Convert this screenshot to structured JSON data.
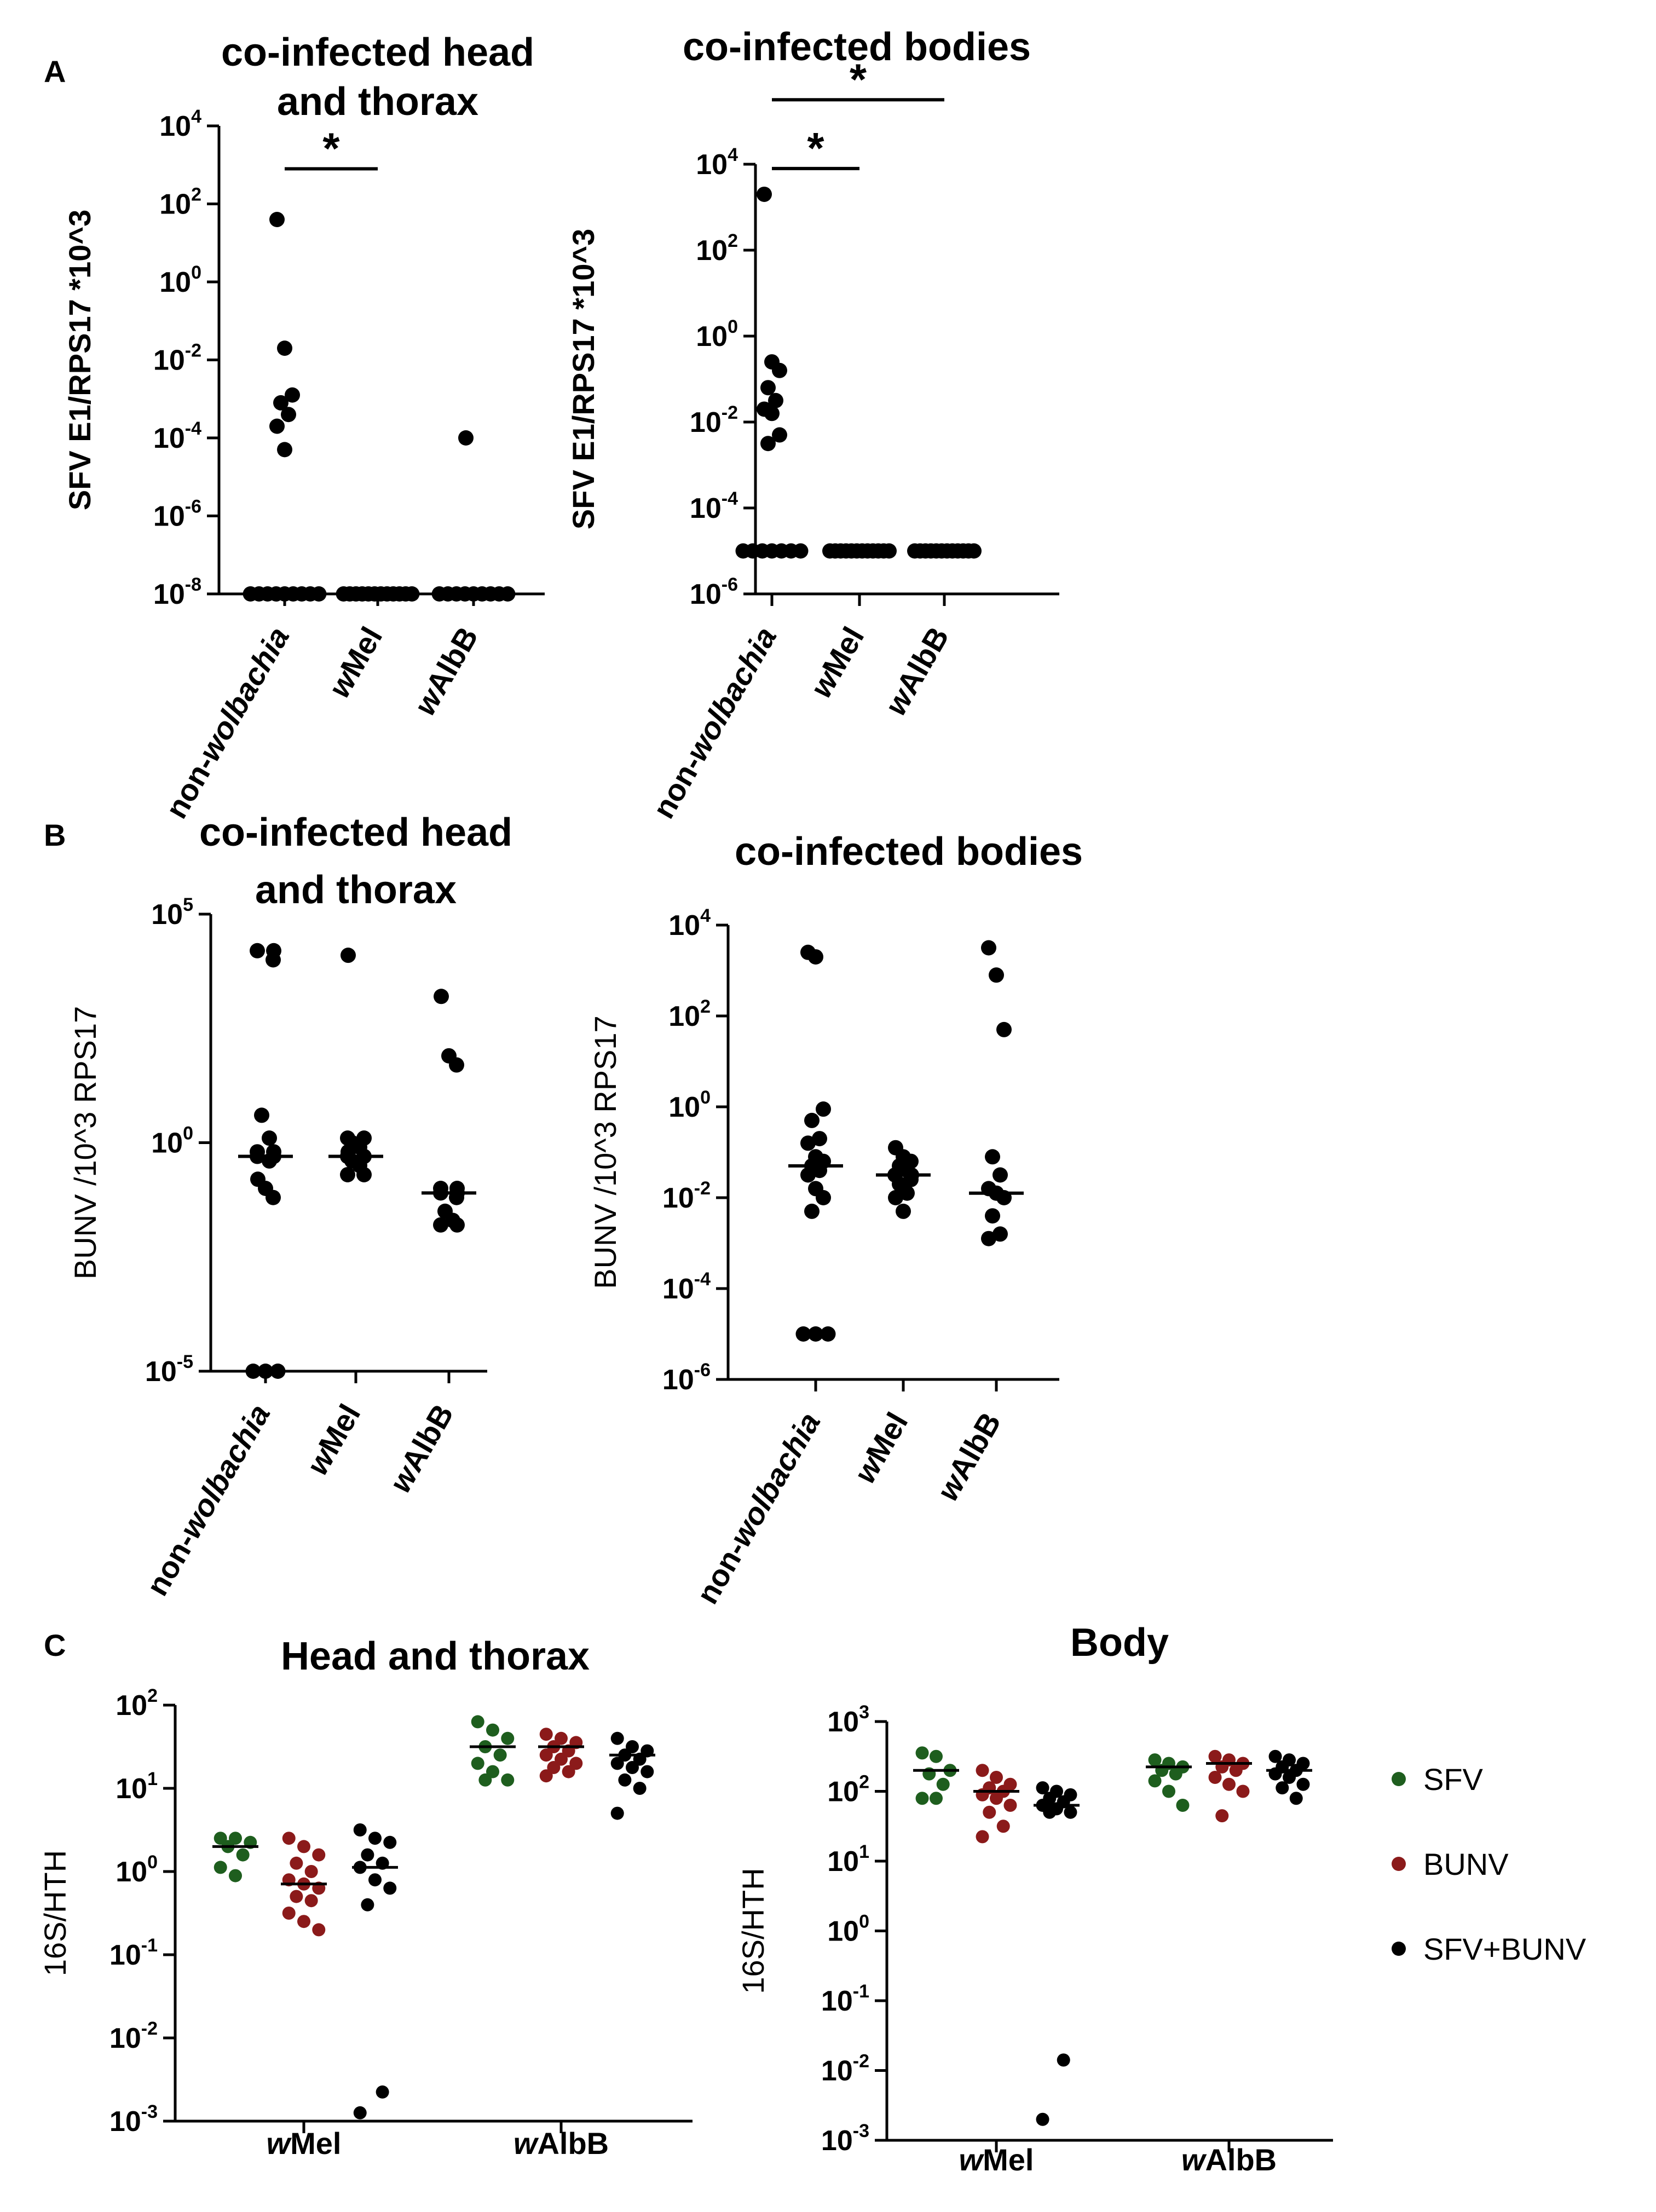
{
  "figure": {
    "panels": [
      {
        "letter": "A"
      },
      {
        "letter": "B"
      },
      {
        "letter": "C"
      }
    ]
  },
  "legend": {
    "items": [
      {
        "label": "SFV",
        "color": "#1e5e1e"
      },
      {
        "label": "BUNV",
        "color": "#8b1a1a"
      },
      {
        "label": "SFV+BUNV",
        "color": "#000000"
      }
    ]
  },
  "chart_data": [
    {
      "id": "A1",
      "panel": "A",
      "type": "scatter",
      "title_lines": [
        "co-infected head",
        "and thorax"
      ],
      "ylabel": "SFV E1/RPS17 *10^3",
      "ylabel_bold": true,
      "yscale": "log",
      "yticks": [
        {
          "base": "10",
          "exp": "4"
        },
        {
          "base": "10",
          "exp": "2"
        },
        {
          "base": "10",
          "exp": "0"
        },
        {
          "base": "10",
          "exp": "-2"
        },
        {
          "base": "10",
          "exp": "-4"
        },
        {
          "base": "10",
          "exp": "-6"
        },
        {
          "base": "10",
          "exp": "-8"
        }
      ],
      "ylim_log10": [
        -8,
        4
      ],
      "categories": [
        {
          "pre": "non-",
          "it": "wolbachia",
          "post": ""
        },
        {
          "pre": "",
          "it": "w",
          "post": "Mel"
        },
        {
          "pre": "",
          "it": "w",
          "post": "AlbB"
        }
      ],
      "series": [
        {
          "name": "non-wolbachia",
          "color": "#000000",
          "median_log10": -8,
          "values_log10": [
            1.6,
            -1.7,
            -2.9,
            -3.1,
            -3.4,
            -3.7,
            -4.3,
            -8,
            -8,
            -8,
            -8,
            -8,
            -8,
            -8,
            -8,
            -8
          ]
        },
        {
          "name": "wMel",
          "color": "#000000",
          "median_log10": -8,
          "values_log10": [
            -8,
            -8,
            -8,
            -8,
            -8,
            -8,
            -8,
            -8,
            -8,
            -8,
            -8,
            -8
          ]
        },
        {
          "name": "wAlbB",
          "color": "#000000",
          "median_log10": -8,
          "values_log10": [
            -4,
            -8,
            -8,
            -8,
            -8,
            -8,
            -8,
            -8,
            -8,
            -8
          ]
        }
      ],
      "significance": [
        {
          "from": 0,
          "to": 1,
          "label": "*",
          "y_log10": 2.9
        }
      ]
    },
    {
      "id": "A2",
      "panel": "A",
      "type": "scatter",
      "title_lines": [
        "co-infected bodies"
      ],
      "ylabel": "SFV E1/RPS17 *10^3",
      "ylabel_bold": true,
      "yscale": "log",
      "yticks": [
        {
          "base": "10",
          "exp": "4"
        },
        {
          "base": "10",
          "exp": "2"
        },
        {
          "base": "10",
          "exp": "0"
        },
        {
          "base": "10",
          "exp": "-2"
        },
        {
          "base": "10",
          "exp": "-4"
        },
        {
          "base": "10",
          "exp": "-6"
        }
      ],
      "ylim_log10": [
        -6,
        4
      ],
      "categories": [
        {
          "pre": "non-",
          "it": "wolbachia",
          "post": ""
        },
        {
          "pre": "",
          "it": "w",
          "post": "Mel"
        },
        {
          "pre": "",
          "it": "w",
          "post": "AlbB"
        }
      ],
      "series": [
        {
          "name": "non-wolbachia",
          "color": "#000000",
          "median_log10": -5,
          "values_log10": [
            3.3,
            -0.6,
            -0.8,
            -1.2,
            -1.5,
            -1.7,
            -1.8,
            -2.3,
            -2.5,
            -5,
            -5,
            -5,
            -5,
            -5,
            -5,
            -5
          ]
        },
        {
          "name": "wMel",
          "color": "#000000",
          "median_log10": -5,
          "values_log10": [
            -5,
            -5,
            -5,
            -5,
            -5,
            -5,
            -5,
            -5,
            -5,
            -5,
            -5,
            -5
          ]
        },
        {
          "name": "wAlbB",
          "color": "#000000",
          "median_log10": -5,
          "values_log10": [
            -5,
            -5,
            -5,
            -5,
            -5,
            -5,
            -5,
            -5,
            -5,
            -5,
            -5,
            -5
          ]
        }
      ],
      "significance": [
        {
          "from": 0,
          "to": 1,
          "label": "*",
          "y_log10": 3.9
        },
        {
          "from": 0,
          "to": 2,
          "label": "*",
          "y_log10": 5.5
        }
      ]
    },
    {
      "id": "B1",
      "panel": "B",
      "type": "scatter",
      "title_lines": [
        "co-infected head",
        "and thorax"
      ],
      "ylabel": "BUNV /10^3 RPS17",
      "ylabel_bold": false,
      "yscale": "log",
      "yticks": [
        {
          "base": "10",
          "exp": "5"
        },
        {
          "base": "10",
          "exp": "0"
        },
        {
          "base": "10",
          "exp": "-5"
        }
      ],
      "ylim_log10": [
        -5,
        5
      ],
      "categories": [
        {
          "pre": "non-",
          "it": "wolbachia",
          "post": ""
        },
        {
          "pre": "",
          "it": "w",
          "post": "Mel"
        },
        {
          "pre": "",
          "it": "w",
          "post": "AlbB"
        }
      ],
      "series": [
        {
          "name": "non-wolbachia",
          "color": "#000000",
          "median_log10": -0.3,
          "values_log10": [
            4.2,
            4.2,
            4.0,
            0.6,
            0.1,
            -0.2,
            -0.2,
            -0.3,
            -0.3,
            -0.4,
            -0.8,
            -1.0,
            -1.2,
            -5,
            -5,
            -5
          ]
        },
        {
          "name": "wMel",
          "color": "#000000",
          "median_log10": -0.3,
          "values_log10": [
            4.1,
            0.1,
            0.1,
            0.0,
            -0.1,
            -0.2,
            -0.3,
            -0.3,
            -0.4,
            -0.5,
            -0.7,
            -0.7
          ]
        },
        {
          "name": "wAlbB",
          "color": "#000000",
          "median_log10": -1.1,
          "values_log10": [
            3.2,
            1.9,
            1.7,
            -1.0,
            -1.0,
            -1.1,
            -1.1,
            -1.2,
            -1.5,
            -1.7,
            -1.8,
            -1.8
          ]
        }
      ],
      "significance": []
    },
    {
      "id": "B2",
      "panel": "B",
      "type": "scatter",
      "title_lines": [
        "co-infected bodies"
      ],
      "ylabel": "BUNV /10^3 RPS17",
      "ylabel_bold": false,
      "yscale": "log",
      "yticks": [
        {
          "base": "10",
          "exp": "4"
        },
        {
          "base": "10",
          "exp": "2"
        },
        {
          "base": "10",
          "exp": "0"
        },
        {
          "base": "10",
          "exp": "-2"
        },
        {
          "base": "10",
          "exp": "-4"
        },
        {
          "base": "10",
          "exp": "-6"
        }
      ],
      "ylim_log10": [
        -6,
        4
      ],
      "categories": [
        {
          "pre": "non-",
          "it": "wolbachia",
          "post": ""
        },
        {
          "pre": "",
          "it": "w",
          "post": "Mel"
        },
        {
          "pre": "",
          "it": "w",
          "post": "AlbB"
        }
      ],
      "series": [
        {
          "name": "non-wolbachia",
          "color": "#000000",
          "median_log10": -1.3,
          "values_log10": [
            3.4,
            3.3,
            -0.05,
            -0.3,
            -0.7,
            -0.8,
            -1.1,
            -1.2,
            -1.3,
            -1.4,
            -1.5,
            -1.8,
            -2.0,
            -2.3,
            -5,
            -5,
            -5
          ]
        },
        {
          "name": "wMel",
          "color": "#000000",
          "median_log10": -1.5,
          "values_log10": [
            -0.9,
            -1.1,
            -1.2,
            -1.3,
            -1.4,
            -1.5,
            -1.5,
            -1.6,
            -1.7,
            -1.9,
            -2.0,
            -2.3
          ]
        },
        {
          "name": "wAlbB",
          "color": "#000000",
          "median_log10": -1.9,
          "values_log10": [
            3.5,
            2.9,
            1.7,
            -1.1,
            -1.5,
            -1.8,
            -1.9,
            -2.0,
            -2.4,
            -2.8,
            -2.9
          ]
        }
      ],
      "significance": []
    },
    {
      "id": "C1",
      "panel": "C",
      "type": "scatter",
      "title_lines": [
        "Head and thorax"
      ],
      "ylabel": "16S/HTH",
      "ylabel_bold": false,
      "yscale": "log",
      "yticks": [
        {
          "base": "10",
          "exp": "2"
        },
        {
          "base": "10",
          "exp": "1"
        },
        {
          "base": "10",
          "exp": "0"
        },
        {
          "base": "10",
          "exp": "-1"
        },
        {
          "base": "10",
          "exp": "-2"
        },
        {
          "base": "10",
          "exp": "-3"
        }
      ],
      "ylim_log10": [
        -3,
        2
      ],
      "categories": [
        {
          "pre": "",
          "it": "w",
          "post": "Mel"
        },
        {
          "pre": "",
          "it": "w",
          "post": "AlbB"
        }
      ],
      "series": [
        {
          "name": "SFV",
          "color": "#1e5e1e",
          "median_log10": [
            0.3,
            1.5
          ],
          "values_log10": [
            [
              0.4,
              0.4,
              0.35,
              0.3,
              0.2,
              0.05,
              -0.05
            ],
            [
              1.8,
              1.7,
              1.6,
              1.5,
              1.4,
              1.3,
              1.2,
              1.1,
              1.1
            ]
          ]
        },
        {
          "name": "BUNV",
          "color": "#8b1a1a",
          "median_log10": [
            -0.15,
            1.5
          ],
          "values_log10": [
            [
              0.4,
              0.3,
              0.2,
              0.1,
              0.0,
              -0.1,
              -0.15,
              -0.2,
              -0.3,
              -0.35,
              -0.5,
              -0.6,
              -0.7
            ],
            [
              1.65,
              1.6,
              1.55,
              1.5,
              1.45,
              1.4,
              1.35,
              1.3,
              1.25,
              1.2,
              1.15
            ]
          ]
        },
        {
          "name": "SFV+BUNV",
          "color": "#000000",
          "median_log10": [
            0.05,
            1.4
          ],
          "values_log10": [
            [
              0.5,
              0.4,
              0.35,
              0.2,
              0.1,
              0.05,
              -0.1,
              -0.2,
              -0.4,
              -2.65,
              -2.9
            ],
            [
              1.6,
              1.5,
              1.45,
              1.4,
              1.35,
              1.3,
              1.25,
              1.2,
              1.1,
              1.0,
              0.7
            ]
          ]
        }
      ]
    },
    {
      "id": "C2",
      "panel": "C",
      "type": "scatter",
      "title_lines": [
        "Body"
      ],
      "ylabel": "16S/HTH",
      "ylabel_bold": false,
      "yscale": "log",
      "yticks": [
        {
          "base": "10",
          "exp": "3"
        },
        {
          "base": "10",
          "exp": "2"
        },
        {
          "base": "10",
          "exp": "1"
        },
        {
          "base": "10",
          "exp": "0"
        },
        {
          "base": "10",
          "exp": "-1"
        },
        {
          "base": "10",
          "exp": "-2"
        },
        {
          "base": "10",
          "exp": "-3"
        }
      ],
      "ylim_log10": [
        -3,
        3
      ],
      "categories": [
        {
          "pre": "",
          "it": "w",
          "post": "Mel"
        },
        {
          "pre": "",
          "it": "w",
          "post": "AlbB"
        }
      ],
      "series": [
        {
          "name": "SFV",
          "color": "#1e5e1e",
          "median_log10": [
            2.3,
            2.35
          ],
          "values_log10": [
            [
              2.55,
              2.5,
              2.3,
              2.25,
              2.1,
              1.9,
              1.9
            ],
            [
              2.45,
              2.4,
              2.35,
              2.3,
              2.25,
              2.15,
              2.0,
              1.8
            ]
          ]
        },
        {
          "name": "BUNV",
          "color": "#8b1a1a",
          "median_log10": [
            2.0,
            2.4
          ],
          "values_log10": [
            [
              2.3,
              2.2,
              2.1,
              2.05,
              2.0,
              1.95,
              1.9,
              1.8,
              1.7,
              1.5,
              1.35
            ],
            [
              2.5,
              2.45,
              2.4,
              2.35,
              2.3,
              2.2,
              2.1,
              2.0,
              1.65
            ]
          ]
        },
        {
          "name": "SFV+BUNV",
          "color": "#000000",
          "median_log10": [
            1.8,
            2.3
          ],
          "values_log10": [
            [
              2.05,
              2.0,
              1.95,
              1.9,
              1.85,
              1.8,
              1.75,
              1.7,
              1.7,
              -1.85,
              -2.7
            ],
            [
              2.5,
              2.45,
              2.4,
              2.35,
              2.3,
              2.25,
              2.2,
              2.1,
              2.05,
              1.9
            ]
          ]
        }
      ]
    }
  ]
}
